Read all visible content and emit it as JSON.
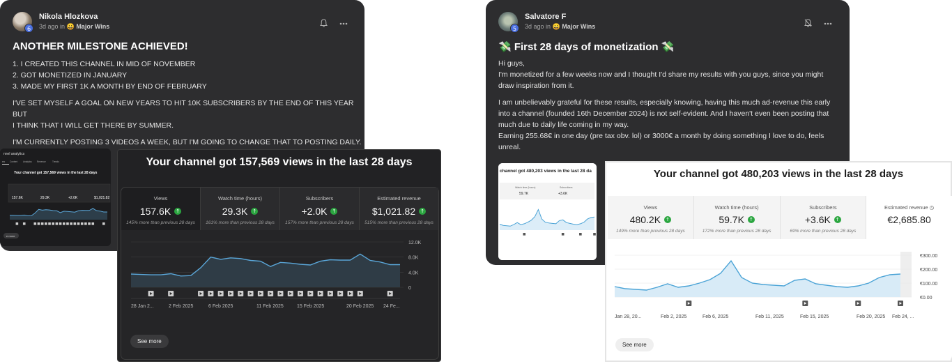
{
  "left_post": {
    "author": "Nikola Hlozkova",
    "level": "6",
    "time": "3d ago",
    "in_word": "in",
    "category_emoji": "😀",
    "category": "Major Wins",
    "title": "ANOTHER MILESTONE ACHIEVED!",
    "list": [
      "1. I CREATED THIS CHANNEL IN MID OF NOVEMBER",
      "2. GOT MONETIZED IN JANUARY",
      "3. MADE MY FIRST 1K A MONTH BY END OF FEBRUARY"
    ],
    "para1": [
      "I'VE SET MYSELF A GOAL ON NEW YEARS TO HIT 10K SUBSCRIBERS BY THE END OF THIS YEAR BUT",
      "I THINK THAT I WILL GET THERE BY SUMMER."
    ],
    "para2": "I'M CURRENTLY POSTING 3 VIDEOS A WEEK, BUT I'M GOING TO CHANGE THAT TO POSTING DAILY.",
    "thumb": {
      "header": "nnel analytics",
      "tabs": [
        "ew",
        "Content",
        "Analytics",
        "Revenue",
        "Trends"
      ],
      "title": "Your channel got 157,569 views in the last 28 days",
      "metrics": [
        "157.6K",
        "29.3K",
        "+2.0K",
        "$1,021.82"
      ],
      "see_more": "e more"
    },
    "card": {
      "title": "Your channel got 157,569 views in the last 28 days",
      "metrics": [
        {
          "label": "Views",
          "value": "157.6K",
          "sub": "145% more than previous 28 days"
        },
        {
          "label": "Watch time (hours)",
          "value": "29.3K",
          "sub": "161% more than previous 28 days"
        },
        {
          "label": "Subscribers",
          "value": "+2.0K",
          "sub": "157% more than previous 28 days"
        },
        {
          "label": "Estimated revenue",
          "value": "$1,021.82",
          "sub": "515% more than previous 28 days"
        }
      ],
      "see_more": "See more"
    }
  },
  "right_post": {
    "author": "Salvatore F",
    "level": "5",
    "time": "3d ago",
    "in_word": "in",
    "category_emoji": "😀",
    "category": "Major Wins",
    "title": "💸 First 28 days of monetization 💸",
    "para1": [
      "Hi guys,",
      "I'm monetized for a few weeks now and I thought I'd share my results with you guys, since you might",
      "draw inspiration from it."
    ],
    "para2": [
      "I am unbelievably grateful for these results, especially knowing, having this much ad-revenue this early",
      "into a channel (founded 16th December 2024) is not self-evident. And I haven't even been posting that",
      "much due to daily life coming in my way.",
      "Earning 255.68€ in one day (pre tax obv. lol) or 3000€ a month by doing something I love to do, feels",
      "unreal."
    ],
    "thumb": {
      "title": "channel got 480,203 views in the last 28 da",
      "metric_labels": [
        "Watch time (hours)",
        "Subscribers"
      ],
      "metrics": [
        "59.7K",
        "+3.6K"
      ]
    },
    "card": {
      "title": "Your channel got 480,203 views in the last 28 days",
      "metrics": [
        {
          "label": "Views",
          "value": "480.2K",
          "sub": "149% more than previous 28 days"
        },
        {
          "label": "Watch time (hours)",
          "value": "59.7K",
          "sub": "172% more than previous 28 days"
        },
        {
          "label": "Subscribers",
          "value": "+3.6K",
          "sub": "69% more than previous 28 days"
        },
        {
          "label": "Estimated revenue",
          "value": "€2,685.80",
          "sub": ""
        }
      ],
      "see_more": "See more"
    }
  },
  "chart_data": [
    {
      "type": "area",
      "title": "Your channel got 157,569 views in the last 28 days",
      "x_tick_labels": [
        "28 Jan 2...",
        "2 Feb 2025",
        "6 Feb 2025",
        "11 Feb 2025",
        "15 Feb 2025",
        "20 Feb 2025",
        "24 Fe..."
      ],
      "y_tick_labels": [
        "12.0K",
        "8.0K",
        "4.0K",
        "0"
      ],
      "ylim": [
        0,
        12000
      ],
      "series": [
        {
          "values": [
            3500,
            3400,
            3300,
            3300,
            3600,
            3000,
            3100,
            5200,
            8000,
            7400,
            7800,
            7600,
            7100,
            6900,
            5500,
            6600,
            6400,
            6100,
            5900,
            6900,
            7300,
            7200,
            7200,
            8800,
            7100,
            6700,
            6000,
            6000
          ]
        }
      ],
      "color": "#5aa6d8"
    },
    {
      "type": "area",
      "title": "Your channel got 480,203 views in the last 28 days",
      "x_tick_labels": [
        "Jan 28, 20...",
        "Feb 2, 2025",
        "Feb 6, 2025",
        "Feb 11, 2025",
        "Feb 15, 2025",
        "Feb 20, 2025",
        "Feb 24, ..."
      ],
      "y_tick_labels": [
        "€300.00",
        "€200.00",
        "€100.00",
        "€0.00"
      ],
      "ylim": [
        0,
        300
      ],
      "series": [
        {
          "values": [
            75,
            60,
            55,
            50,
            70,
            95,
            70,
            80,
            100,
            125,
            170,
            260,
            140,
            100,
            90,
            85,
            80,
            120,
            130,
            95,
            85,
            75,
            70,
            80,
            100,
            140,
            160,
            165
          ]
        }
      ],
      "color": "#4aa3d6"
    }
  ]
}
